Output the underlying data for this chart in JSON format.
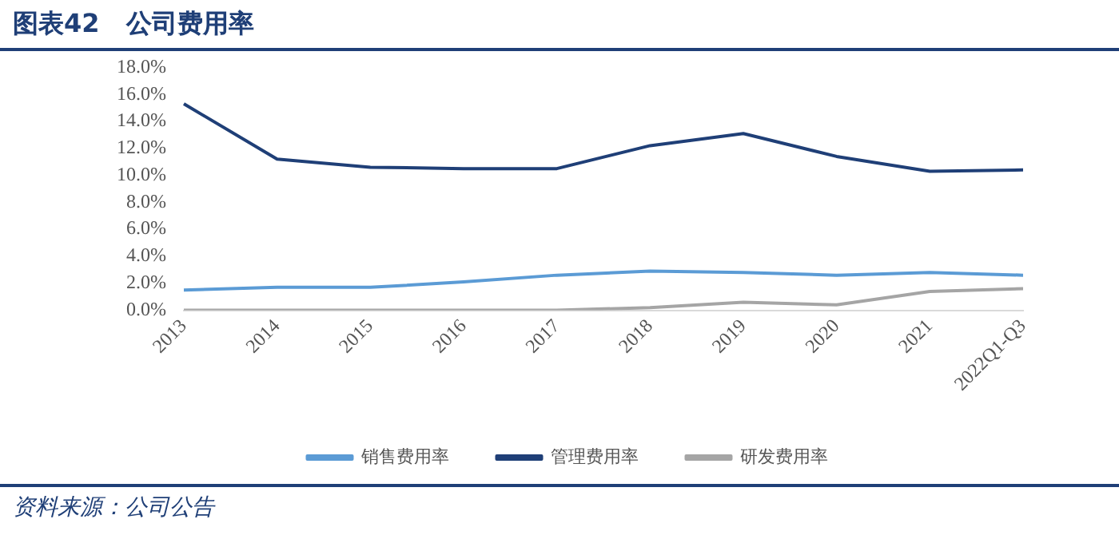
{
  "chart_data": {
    "type": "line",
    "title": "图表42   公司费用率",
    "annotations": [
      "资料来源：公司公告"
    ],
    "categories": [
      "2013",
      "2014",
      "2015",
      "2016",
      "2017",
      "2018",
      "2019",
      "2020",
      "2021",
      "2022Q1-Q3"
    ],
    "series": [
      {
        "name": "销售费用率",
        "color": "#5b9bd5",
        "values": [
          1.5,
          1.7,
          1.7,
          2.1,
          2.6,
          2.9,
          2.8,
          2.6,
          2.8,
          2.6
        ]
      },
      {
        "name": "管理费用率",
        "color": "#1f3f77",
        "values": [
          15.3,
          11.2,
          10.6,
          10.5,
          10.5,
          12.2,
          13.1,
          11.4,
          10.3,
          10.4
        ]
      },
      {
        "name": "研发费用率",
        "color": "#a5a5a5",
        "values": [
          0,
          0,
          0,
          0,
          0,
          0.2,
          0.6,
          0.4,
          1.4,
          1.6
        ]
      }
    ],
    "ylim": [
      0,
      18
    ],
    "yticks": [
      {
        "value": 0,
        "label": "0.0%"
      },
      {
        "value": 2,
        "label": "2.0%"
      },
      {
        "value": 4,
        "label": "4.0%"
      },
      {
        "value": 6,
        "label": "6.0%"
      },
      {
        "value": 8,
        "label": "8.0%"
      },
      {
        "value": 10,
        "label": "10.0%"
      },
      {
        "value": 12,
        "label": "12.0%"
      },
      {
        "value": 14,
        "label": "14.0%"
      },
      {
        "value": 16,
        "label": "16.0%"
      },
      {
        "value": 18,
        "label": "18.0%"
      }
    ],
    "grid": false,
    "legend": "bottom",
    "marker": "none",
    "line_style": "solid"
  }
}
